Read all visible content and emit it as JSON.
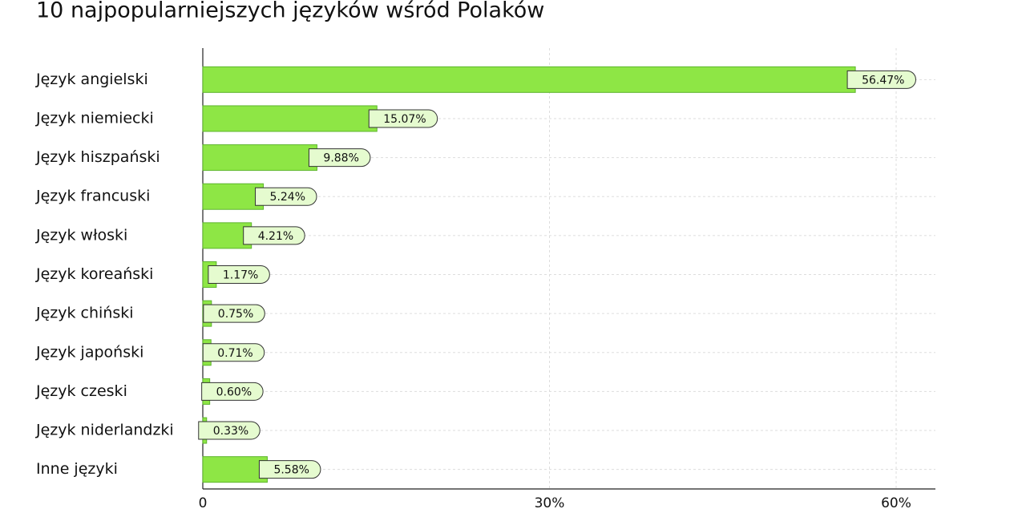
{
  "chart_data": {
    "type": "barh",
    "title": "10 najpopularniejszych języków wśród Polaków",
    "categories": [
      "Język angielski",
      "Język niemiecki",
      "Język hiszpański",
      "Język francuski",
      "Język włoski",
      "Język koreański",
      "Język chiński",
      "Język japoński",
      "Język czeski",
      "Język niderlandzki",
      "Inne języki"
    ],
    "values": [
      56.47,
      15.07,
      9.88,
      5.24,
      4.21,
      1.17,
      0.75,
      0.71,
      0.6,
      0.33,
      5.58
    ],
    "value_labels": [
      "56.47%",
      "15.07%",
      "9.88%",
      "5.24%",
      "4.21%",
      "1.17%",
      "0.75%",
      "0.71%",
      "0.60%",
      "0.33%",
      "5.58%"
    ],
    "color": "#8ee645",
    "xlim": [
      0,
      63.4
    ],
    "xticks": [
      0,
      {
        "value": 30,
        "label": "30%"
      },
      {
        "value": 60,
        "label": "60%"
      }
    ],
    "grid": true
  }
}
